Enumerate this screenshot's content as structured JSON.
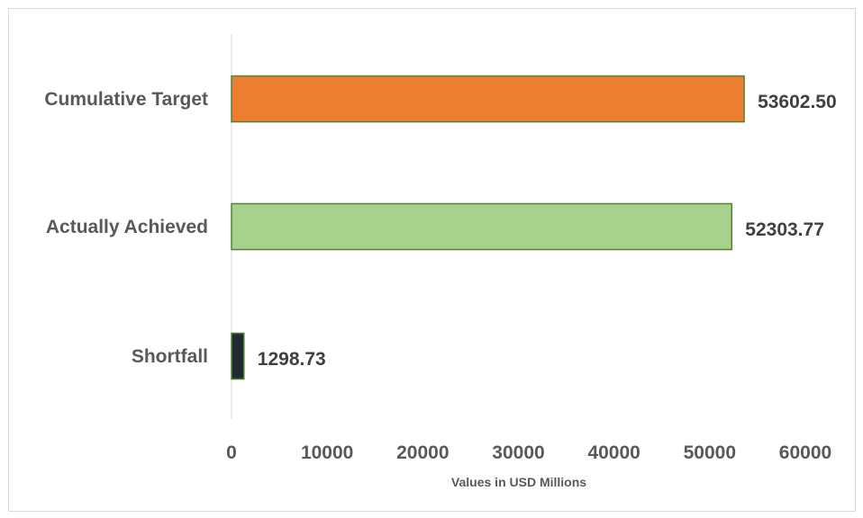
{
  "chart_data": {
    "type": "bar",
    "orientation": "horizontal",
    "title": "",
    "xlabel": "Values in USD Millions",
    "ylabel": "",
    "xlim": [
      0,
      60000
    ],
    "xticks": [
      0,
      10000,
      20000,
      30000,
      40000,
      50000,
      60000
    ],
    "grid": false,
    "legend": "none",
    "categories": [
      "Cumulative Target",
      "Actually Achieved",
      "Shortfall"
    ],
    "values": [
      53602.5,
      52303.77,
      1298.73
    ],
    "value_labels": [
      "53602.50",
      "52303.77",
      "1298.73"
    ],
    "colors": [
      "#ed7d31",
      "#a9d18e",
      "#1f2a33"
    ],
    "border_color": "#548235"
  }
}
